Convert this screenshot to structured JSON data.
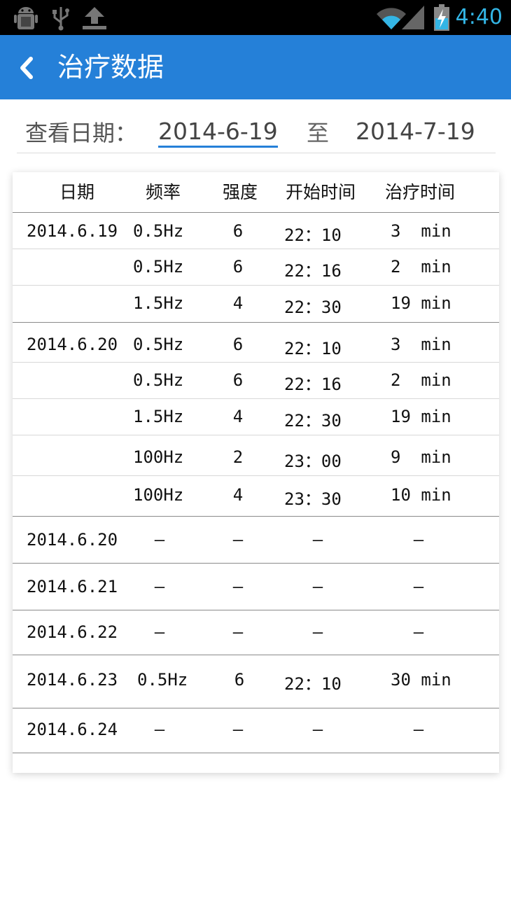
{
  "status_bar": {
    "time": "4:40",
    "icons": [
      "android-debug-icon",
      "usb-icon",
      "upload-icon",
      "wifi-icon",
      "signal-icon",
      "battery-charging-icon"
    ]
  },
  "header": {
    "back_icon": "chevron-left-icon",
    "title": "治疗数据",
    "color": "#2580d8"
  },
  "filter": {
    "label": "查看日期：",
    "start_date": "2014-6-19",
    "separator": "至",
    "end_date": "2014-7-19"
  },
  "table": {
    "headers": [
      "日期",
      "频率",
      "强度",
      "开始时间",
      "治疗时间"
    ],
    "groups": [
      {
        "date": "2014.6.19",
        "rows": [
          {
            "freq": "0.5Hz",
            "intensity": "6",
            "start": "22：10",
            "duration": "3  min"
          },
          {
            "freq": "0.5Hz",
            "intensity": "6",
            "start": "22：16",
            "duration": "2  min"
          },
          {
            "freq": "1.5Hz",
            "intensity": "4",
            "start": "22：30",
            "duration": "19 min"
          }
        ]
      },
      {
        "date": "2014.6.20",
        "rows": [
          {
            "freq": "0.5Hz",
            "intensity": "6",
            "start": "22：10",
            "duration": "3  min"
          },
          {
            "freq": "0.5Hz",
            "intensity": "6",
            "start": "22：16",
            "duration": "2  min"
          },
          {
            "freq": "1.5Hz",
            "intensity": "4",
            "start": "22：30",
            "duration": "19 min"
          },
          {
            "freq": "100Hz",
            "intensity": "2",
            "start": "23：00",
            "duration": "9  min"
          },
          {
            "freq": "100Hz",
            "intensity": "4",
            "start": "23：30",
            "duration": "10 min"
          }
        ]
      },
      {
        "date": "2014.6.20",
        "empty": "—"
      },
      {
        "date": "2014.6.21",
        "empty": "—"
      },
      {
        "date": "2014.6.22",
        "empty": "—"
      },
      {
        "date": "2014.6.23",
        "rows": [
          {
            "freq": "0.5Hz",
            "intensity": "6",
            "start": "22：10",
            "duration": "30 min"
          }
        ]
      },
      {
        "date": "2014.6.24",
        "empty": "—"
      }
    ]
  }
}
